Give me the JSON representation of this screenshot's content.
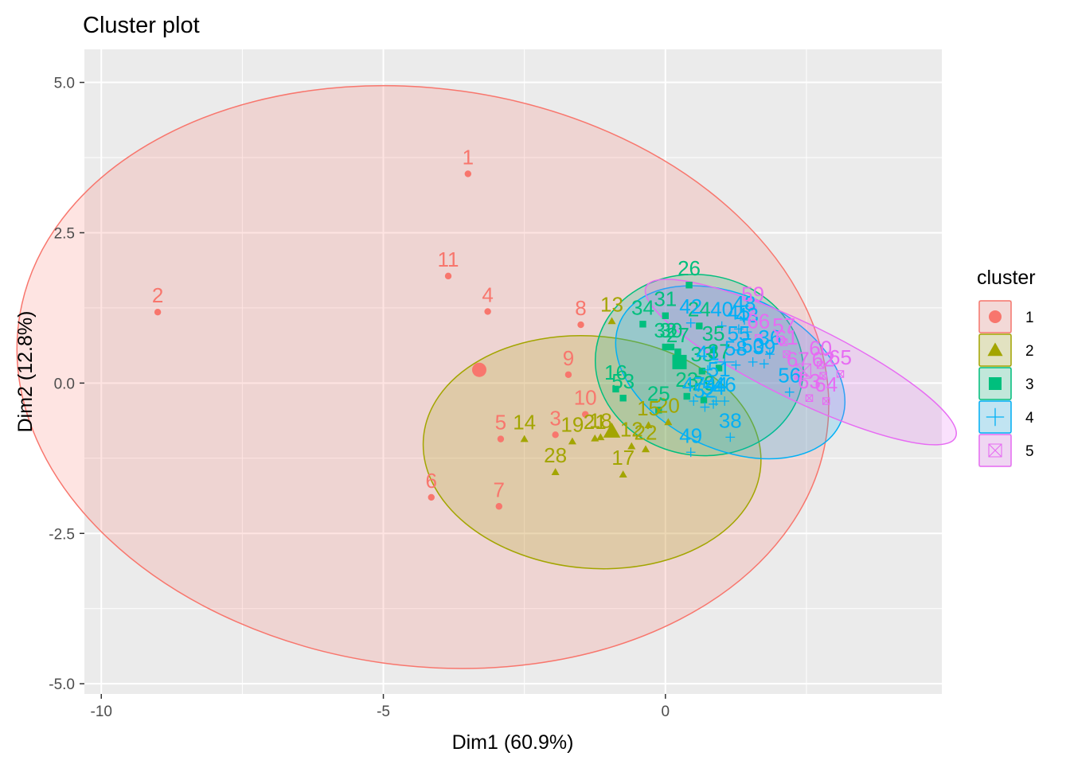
{
  "chart_data": {
    "type": "scatter",
    "title": "Cluster plot",
    "xlabel": "Dim1 (60.9%)",
    "ylabel": "Dim2 (12.8%)",
    "xlim": [
      -10.3,
      4.9
    ],
    "ylim": [
      -5.17,
      5.55
    ],
    "grid": true,
    "x_ticks": [
      -10,
      -5,
      0
    ],
    "x_tick_labels": [
      "-10",
      "-5",
      "0"
    ],
    "y_ticks": [
      5.0,
      2.5,
      0.0,
      -2.5,
      -5.0
    ],
    "y_tick_labels": [
      "5.0",
      "2.5",
      "0.0",
      "-2.5",
      "-5.0"
    ],
    "legend": {
      "title": "cluster",
      "position": "right"
    },
    "colors": {
      "1": "#F8766D",
      "2": "#A3A500",
      "3": "#00BF7D",
      "4": "#00B0F6",
      "5": "#E76BF3"
    },
    "series": [
      {
        "name": "1",
        "shape": "circle",
        "ellipse": {
          "cx": -4.3,
          "cy": 0.1,
          "rx": 7.23,
          "ry": 4.8,
          "angle": -8
        },
        "center": [
          -3.3,
          0.22
        ],
        "points": [
          {
            "label": "1",
            "x": -3.5,
            "y": 3.48
          },
          {
            "label": "2",
            "x": -9.0,
            "y": 1.18
          },
          {
            "label": "3",
            "x": -1.95,
            "y": -0.86
          },
          {
            "label": "4",
            "x": -3.15,
            "y": 1.19
          },
          {
            "label": "5",
            "x": -2.92,
            "y": -0.93
          },
          {
            "label": "6",
            "x": -4.15,
            "y": -1.9
          },
          {
            "label": "7",
            "x": -2.95,
            "y": -2.05
          },
          {
            "label": "8",
            "x": -1.5,
            "y": 0.97
          },
          {
            "label": "9",
            "x": -1.72,
            "y": 0.14
          },
          {
            "label": "10",
            "x": -1.42,
            "y": -0.52
          },
          {
            "label": "11",
            "x": -3.85,
            "y": 1.78
          }
        ]
      },
      {
        "name": "2",
        "shape": "triangle",
        "ellipse": {
          "cx": -1.3,
          "cy": -1.15,
          "rx": 3.0,
          "ry": 1.93,
          "angle": -5
        },
        "center": [
          -0.95,
          -0.8
        ],
        "points": [
          {
            "label": "12",
            "x": -0.6,
            "y": -1.05
          },
          {
            "label": "13",
            "x": -0.95,
            "y": 1.03
          },
          {
            "label": "14",
            "x": -2.5,
            "y": -0.93
          },
          {
            "label": "15",
            "x": -0.3,
            "y": -0.7
          },
          {
            "label": "17",
            "x": -0.75,
            "y": -1.52
          },
          {
            "label": "18",
            "x": -1.15,
            "y": -0.9
          },
          {
            "label": "19",
            "x": -1.65,
            "y": -0.97
          },
          {
            "label": "20",
            "x": 0.05,
            "y": -0.65
          },
          {
            "label": "21",
            "x": -1.25,
            "y": -0.92
          },
          {
            "label": "22",
            "x": -0.35,
            "y": -1.1
          },
          {
            "label": "28",
            "x": -1.95,
            "y": -1.48
          }
        ]
      },
      {
        "name": "3",
        "shape": "square",
        "ellipse": {
          "cx": 0.6,
          "cy": 0.3,
          "rx": 1.85,
          "ry": 1.5,
          "angle": -10
        },
        "center": [
          0.25,
          0.35
        ],
        "points": [
          {
            "label": "16",
            "x": -0.88,
            "y": -0.1
          },
          {
            "label": "23",
            "x": 0.38,
            "y": -0.22
          },
          {
            "label": "24",
            "x": 0.6,
            "y": 0.95
          },
          {
            "label": "25",
            "x": -0.12,
            "y": -0.45
          },
          {
            "label": "26",
            "x": 0.42,
            "y": 1.63
          },
          {
            "label": "27",
            "x": 0.22,
            "y": 0.52
          },
          {
            "label": "29",
            "x": 0.68,
            "y": -0.28
          },
          {
            "label": "30",
            "x": 0.1,
            "y": 0.6
          },
          {
            "label": "31",
            "x": 0.0,
            "y": 1.12
          },
          {
            "label": "32",
            "x": 0.0,
            "y": 0.6
          },
          {
            "label": "33",
            "x": 0.65,
            "y": 0.2
          },
          {
            "label": "34",
            "x": -0.4,
            "y": 0.98
          },
          {
            "label": "35",
            "x": 0.85,
            "y": 0.55
          },
          {
            "label": "37",
            "x": 0.95,
            "y": 0.25
          },
          {
            "label": "53",
            "x": -0.75,
            "y": -0.25
          }
        ]
      },
      {
        "name": "4",
        "shape": "plus",
        "ellipse": {
          "cx": 1.15,
          "cy": 0.18,
          "rx": 2.15,
          "ry": 1.28,
          "angle": -25
        },
        "center": [
          1.05,
          0.35
        ],
        "points": [
          {
            "label": "36",
            "x": 1.85,
            "y": 0.48
          },
          {
            "label": "38",
            "x": 1.15,
            "y": -0.9
          },
          {
            "label": "39",
            "x": 1.75,
            "y": 0.32
          },
          {
            "label": "40",
            "x": 1.0,
            "y": 0.95
          },
          {
            "label": "41",
            "x": 0.75,
            "y": 0.22
          },
          {
            "label": "42",
            "x": 0.45,
            "y": 1.0
          },
          {
            "label": "43",
            "x": 1.45,
            "y": 0.85
          },
          {
            "label": "44",
            "x": 0.9,
            "y": -0.3
          },
          {
            "label": "45",
            "x": 1.3,
            "y": 0.9
          },
          {
            "label": "46",
            "x": 1.05,
            "y": -0.3
          },
          {
            "label": "47",
            "x": 0.5,
            "y": -0.3
          },
          {
            "label": "48",
            "x": 1.4,
            "y": 1.05
          },
          {
            "label": "49",
            "x": 0.45,
            "y": -1.15
          },
          {
            "label": "50",
            "x": 1.55,
            "y": 0.35
          },
          {
            "label": "51",
            "x": 0.95,
            "y": -0.05
          },
          {
            "label": "52",
            "x": 0.7,
            "y": -0.4
          },
          {
            "label": "54",
            "x": 0.85,
            "y": -0.35
          },
          {
            "label": "55",
            "x": 1.3,
            "y": 0.55
          },
          {
            "label": "56",
            "x": 2.2,
            "y": -0.15
          },
          {
            "label": "58",
            "x": 1.25,
            "y": 0.3
          }
        ]
      },
      {
        "name": "5",
        "shape": "boxtimes",
        "ellipse": {
          "cx": 2.4,
          "cy": 0.35,
          "rx": 3.05,
          "ry": 0.63,
          "angle": -26
        },
        "center": [
          2.45,
          0.2
        ],
        "points": [
          {
            "label": "57",
            "x": 2.1,
            "y": 0.68
          },
          {
            "label": "59",
            "x": 1.55,
            "y": 1.2
          },
          {
            "label": "60",
            "x": 2.75,
            "y": 0.3
          },
          {
            "label": "61",
            "x": 2.15,
            "y": 0.48
          },
          {
            "label": "62",
            "x": 2.8,
            "y": 0.12
          },
          {
            "label": "63",
            "x": 2.55,
            "y": -0.25
          },
          {
            "label": "64",
            "x": 2.85,
            "y": -0.3
          },
          {
            "label": "65",
            "x": 3.1,
            "y": 0.15
          },
          {
            "label": "66",
            "x": 1.65,
            "y": 0.75
          },
          {
            "label": "67",
            "x": 2.35,
            "y": 0.12
          }
        ]
      }
    ]
  }
}
